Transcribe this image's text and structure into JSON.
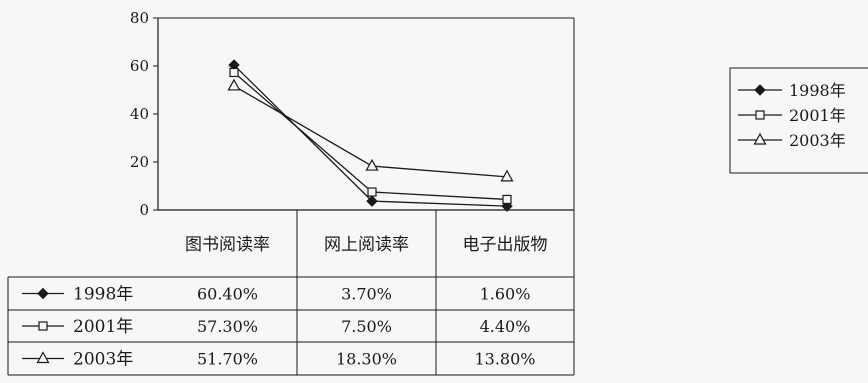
{
  "chart_data": {
    "type": "line",
    "categories": [
      "图书阅读率",
      "网上阅读率",
      "电子出版物"
    ],
    "series": [
      {
        "name": "1998年",
        "marker": "filled-diamond",
        "values": [
          60.4,
          3.7,
          1.6
        ],
        "labels": [
          "60.40%",
          "3.70%",
          "1.60%"
        ]
      },
      {
        "name": "2001年",
        "marker": "open-square",
        "values": [
          57.3,
          7.5,
          4.4
        ],
        "labels": [
          "57.30%",
          "7.50%",
          "4.40%"
        ]
      },
      {
        "name": "2003年",
        "marker": "open-triangle",
        "values": [
          51.7,
          18.3,
          13.8
        ],
        "labels": [
          "51.70%",
          "18.30%",
          "13.80%"
        ]
      }
    ],
    "yticks": [
      "80",
      "60",
      "40",
      "20",
      "0"
    ],
    "ylim": [
      0,
      80
    ],
    "grid": false,
    "legend_position": "right",
    "data_table": true,
    "colors": {
      "ink": "#1a1a1a",
      "background": "#f7f7f5"
    }
  }
}
